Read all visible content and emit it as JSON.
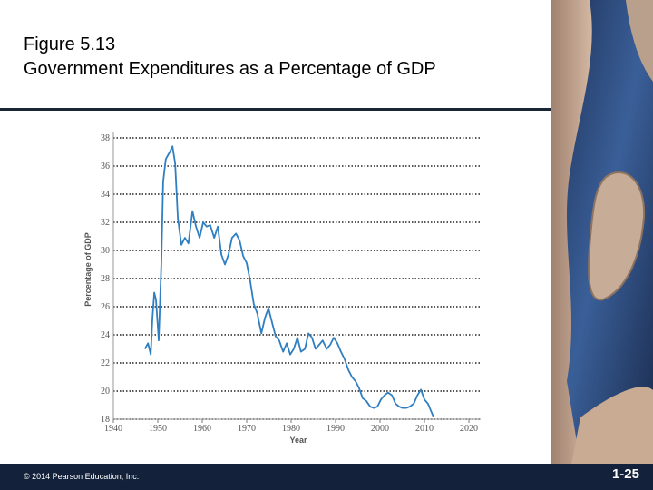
{
  "header": {
    "figure": "Figure 5.13",
    "title": "Government Expenditures as a Percentage of GDP"
  },
  "footer": {
    "copyright": "© 2014 Pearson Education, Inc.",
    "page": "1-25"
  },
  "chart_data": {
    "type": "line",
    "x_label": "Year",
    "y_label": "Percentage of GDP",
    "xlim": [
      1940,
      2020
    ],
    "xticks": [
      1940,
      1950,
      1960,
      1970,
      1980,
      1990,
      2000,
      2010,
      2020
    ],
    "ylim": [
      18,
      38
    ],
    "yticks": [
      18,
      20,
      22,
      24,
      26,
      28,
      30,
      32,
      34,
      36,
      38
    ],
    "grid": true,
    "color": "#2f7fc1",
    "x": [
      1947.1,
      1947.8,
      1948.4,
      1948.8,
      1949.2,
      1949.6,
      1950.2,
      1950.8,
      1951.2,
      1951.8,
      1952.7,
      1953.3,
      1953.9,
      1954.5,
      1955.3,
      1956.1,
      1956.9,
      1957.8,
      1958.6,
      1959.4,
      1960.2,
      1961.0,
      1961.8,
      1962.7,
      1963.5,
      1964.3,
      1965.1,
      1965.9,
      1966.7,
      1967.6,
      1968.4,
      1969.2,
      1970.0,
      1970.8,
      1971.6,
      1972.4,
      1973.3,
      1974.1,
      1974.9,
      1975.7,
      1976.5,
      1977.3,
      1978.2,
      1979.0,
      1979.8,
      1980.6,
      1981.4,
      1982.2,
      1983.1,
      1983.9,
      1984.7,
      1985.5,
      1986.3,
      1987.1,
      1988.0,
      1988.8,
      1989.6,
      1990.4,
      1991.2,
      1992.0,
      1992.9,
      1993.7,
      1994.5,
      1995.3,
      1996.1,
      1996.9,
      1997.8,
      1998.6,
      1999.4,
      2000.2,
      2001.0,
      2001.8,
      2002.7,
      2003.5,
      2004.3,
      2005.1,
      2005.9,
      2006.7,
      2007.6,
      2008.4,
      2009.2,
      2010.0,
      2010.8,
      2011.6,
      2012.0
    ],
    "values": [
      23.0,
      23.4,
      22.6,
      25.2,
      27.0,
      26.5,
      23.6,
      29.1,
      34.9,
      36.5,
      37.0,
      37.4,
      36.2,
      32.3,
      30.4,
      30.9,
      30.5,
      32.8,
      31.7,
      30.9,
      32.0,
      31.7,
      31.8,
      30.9,
      31.7,
      29.7,
      29.0,
      29.7,
      30.9,
      31.2,
      30.7,
      29.6,
      29.1,
      27.8,
      26.2,
      25.5,
      24.1,
      25.2,
      25.9,
      24.9,
      23.9,
      23.6,
      22.8,
      23.4,
      22.6,
      23.0,
      23.8,
      22.8,
      23.0,
      24.1,
      23.8,
      23.0,
      23.3,
      23.6,
      23.0,
      23.3,
      23.8,
      23.4,
      22.8,
      22.3,
      21.5,
      21.0,
      20.7,
      20.2,
      19.5,
      19.3,
      18.9,
      18.8,
      18.9,
      19.4,
      19.7,
      19.9,
      19.7,
      19.1,
      18.9,
      18.8,
      18.8,
      18.9,
      19.1,
      19.7,
      20.1,
      19.4,
      19.1,
      18.5,
      18.2
    ]
  }
}
